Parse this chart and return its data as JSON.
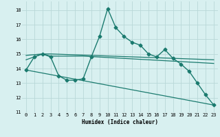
{
  "line_main_x": [
    0,
    1,
    2,
    3,
    4,
    5,
    6,
    7,
    8,
    9,
    10,
    11,
    12,
    13,
    14,
    15,
    16,
    17,
    18,
    19,
    20,
    21,
    22,
    23
  ],
  "line_main_y": [
    13.9,
    14.8,
    15.0,
    14.8,
    13.5,
    13.2,
    13.2,
    13.3,
    14.8,
    16.2,
    18.1,
    16.8,
    16.2,
    15.8,
    15.6,
    15.0,
    14.8,
    15.3,
    14.7,
    14.3,
    13.8,
    13.0,
    12.2,
    11.5
  ],
  "line2_x": [
    0,
    2,
    3,
    23
  ],
  "line2_y": [
    14.9,
    15.0,
    15.0,
    14.6
  ],
  "line3_x": [
    0,
    2,
    3,
    7,
    23
  ],
  "line3_y": [
    14.6,
    15.0,
    14.85,
    14.85,
    14.35
  ],
  "line4_x": [
    0,
    23
  ],
  "line4_y": [
    13.9,
    11.5
  ],
  "line_color": "#1a7a6e",
  "xlabel": "Humidex (Indice chaleur)",
  "xlim": [
    -0.5,
    23.5
  ],
  "ylim": [
    11,
    18.6
  ],
  "yticks": [
    11,
    12,
    13,
    14,
    15,
    16,
    17,
    18
  ],
  "xticks": [
    0,
    1,
    2,
    3,
    4,
    5,
    6,
    7,
    8,
    9,
    10,
    11,
    12,
    13,
    14,
    15,
    16,
    17,
    18,
    19,
    20,
    21,
    22,
    23
  ],
  "bg_color": "#d8f0f0",
  "grid_color": "#b8d8d8",
  "marker_color": "#1a7a6e"
}
